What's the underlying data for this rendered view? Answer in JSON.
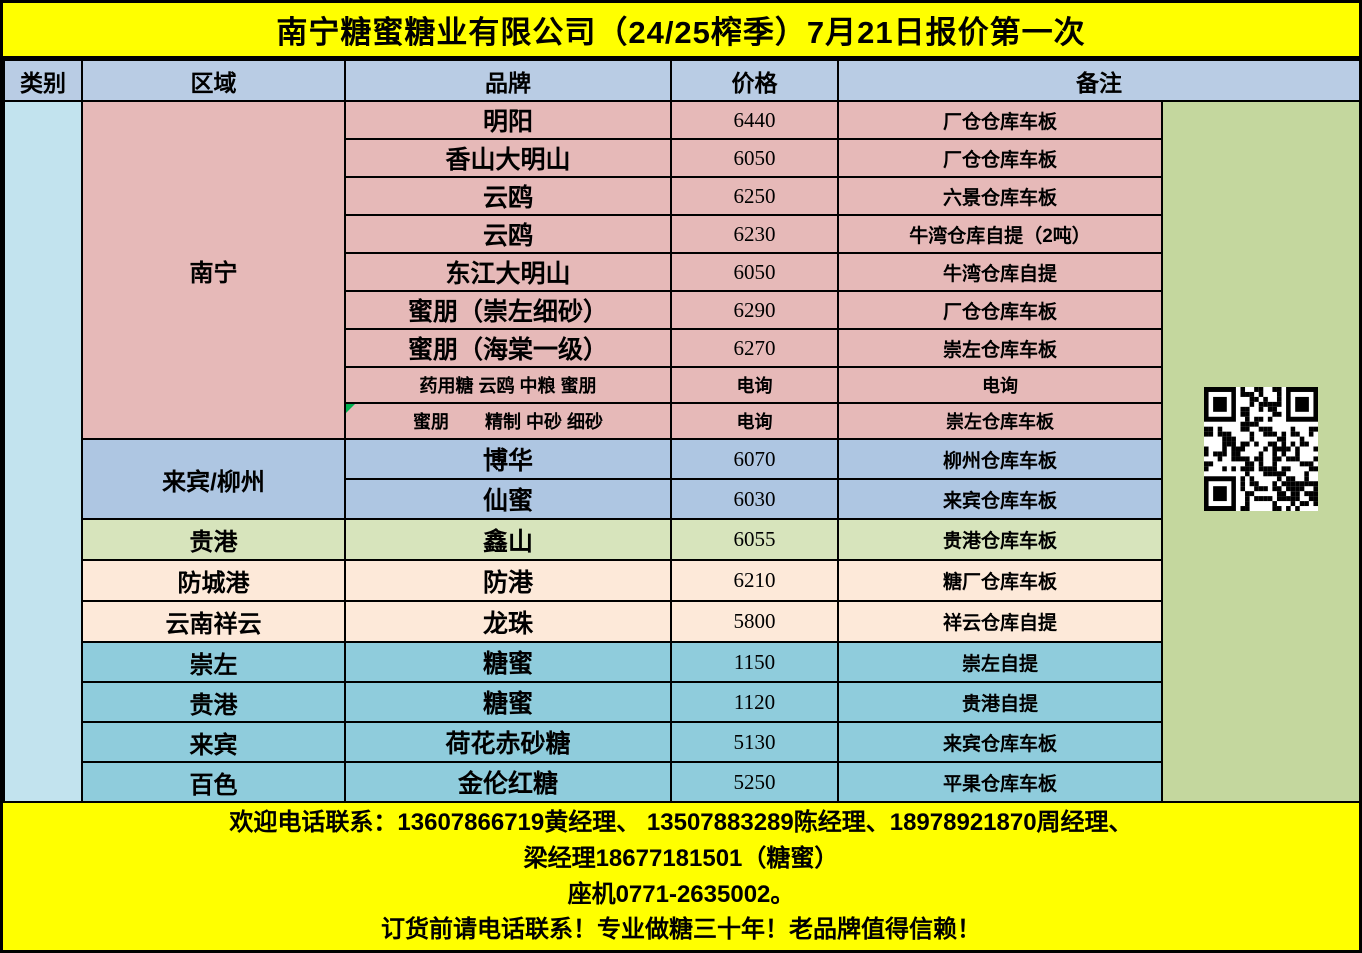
{
  "title": "南宁糖蜜糖业有限公司（24/25榨季）7月21日报价第一次",
  "columns": {
    "category": "类别",
    "region": "区域",
    "brand": "品牌",
    "price": "价格",
    "remark": "备注"
  },
  "groups": [
    {
      "region": "南宁",
      "color_key": "pink",
      "rows": [
        {
          "brand": "明阳",
          "price": "6440",
          "remark": "厂仓仓库车板"
        },
        {
          "brand": "香山大明山",
          "price": "6050",
          "remark": "厂仓仓库车板"
        },
        {
          "brand": "云鸥",
          "price": "6250",
          "remark": "六景仓库车板"
        },
        {
          "brand": "云鸥",
          "price": "6230",
          "remark": "牛湾仓库自提（2吨）"
        },
        {
          "brand": "东江大明山",
          "price": "6050",
          "remark": "牛湾仓库自提"
        },
        {
          "brand": "蜜朋（崇左细砂）",
          "price": "6290",
          "remark": "厂仓仓库车板"
        },
        {
          "brand": "蜜朋（海棠一级）",
          "price": "6270",
          "remark": "崇左仓库车板"
        },
        {
          "brand": "药用糖 云鸥 中粮 蜜朋",
          "price": "电询",
          "remark": "电询",
          "small": true
        },
        {
          "brand": "蜜朋　　精制 中砂 细砂",
          "price": "电询",
          "remark": "崇左仓库车板",
          "small": true,
          "comment_marker": true
        }
      ]
    },
    {
      "region": "来宾/柳州",
      "color_key": "blue",
      "rows": [
        {
          "brand": "博华",
          "price": "6070",
          "remark": "柳州仓库车板"
        },
        {
          "brand": "仙蜜",
          "price": "6030",
          "remark": "来宾仓库车板"
        }
      ]
    },
    {
      "region": "贵港",
      "color_key": "green",
      "rows": [
        {
          "brand": "鑫山",
          "price": "6055",
          "remark": "贵港仓库车板"
        }
      ]
    },
    {
      "region": "防城港",
      "color_key": "peach",
      "rows": [
        {
          "brand": "防港",
          "price": "6210",
          "remark": "糖厂仓库车板"
        }
      ]
    },
    {
      "region": "云南祥云",
      "color_key": "peach",
      "rows": [
        {
          "brand": "龙珠",
          "price": "5800",
          "remark": "祥云仓库自提"
        }
      ]
    },
    {
      "region": "崇左",
      "color_key": "teal",
      "rows": [
        {
          "brand": "糖蜜",
          "price": "1150",
          "remark": "崇左自提"
        }
      ]
    },
    {
      "region": "贵港",
      "color_key": "teal",
      "rows": [
        {
          "brand": "糖蜜",
          "price": "1120",
          "remark": "贵港自提"
        }
      ]
    },
    {
      "region": "来宾",
      "color_key": "teal",
      "rows": [
        {
          "brand": "荷花赤砂糖",
          "price": "5130",
          "remark": "来宾仓库车板"
        }
      ]
    },
    {
      "region": "百色",
      "color_key": "teal",
      "rows": [
        {
          "brand": "金伦红糖",
          "price": "5250",
          "remark": "平果仓库车板"
        }
      ]
    }
  ],
  "footer": {
    "lines": [
      "欢迎电话联系：13607866719黄经理、  13507883289陈经理、18978921870周经理、",
      "梁经理18677181501（糖蜜）",
      "座机0771-2635002。",
      "订货前请电话联系！专业做糖三十年！老品牌值得信赖！"
    ]
  },
  "icons": {
    "qr_code": "qr-code",
    "comment_marker": "cell-comment-triangle"
  },
  "colors": {
    "yellow": "#ffff00",
    "header_blue": "#b9cce4",
    "pink": "#e6b9b8",
    "blue": "#aec6e2",
    "green": "#d7e4bc",
    "peach": "#fde9d9",
    "teal": "#8fccdc",
    "cyan": "#c2e3ee",
    "olive": "#c4d79e",
    "comment_green": "#00b050",
    "border": "#000000"
  }
}
